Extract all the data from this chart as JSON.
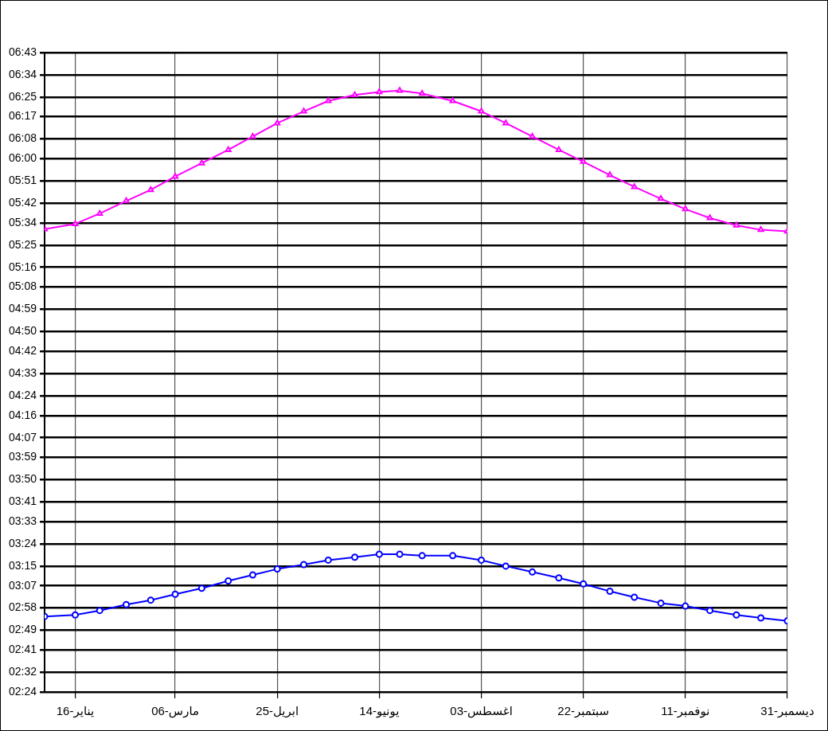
{
  "chart_data": {
    "type": "line",
    "xlim": [
      "--01-01",
      "--12-31"
    ],
    "xticks": [
      {
        "value": "--01-16",
        "label": "16-يناير"
      },
      {
        "value": "--03-06",
        "label": "06-مارس"
      },
      {
        "value": "--04-25",
        "label": "25-ابريل"
      },
      {
        "value": "--06-14",
        "label": "14-يونيو"
      },
      {
        "value": "--08-03",
        "label": "03-اغسطس"
      },
      {
        "value": "--09-22",
        "label": "22-سبتمبر"
      },
      {
        "value": "--11-11",
        "label": "11-نوفمبر"
      },
      {
        "value": "--12-31",
        "label": "31-ديسمبر"
      }
    ],
    "ylim": [
      2.4,
      6.7167
    ],
    "yticks": [
      {
        "value": 2.4,
        "label": "02:24"
      },
      {
        "value": 2.5333,
        "label": "02:32"
      },
      {
        "value": 2.6833,
        "label": "02:41"
      },
      {
        "value": 2.8167,
        "label": "02:49"
      },
      {
        "value": 2.9667,
        "label": "02:58"
      },
      {
        "value": 3.1167,
        "label": "03:07"
      },
      {
        "value": 3.25,
        "label": "03:15"
      },
      {
        "value": 3.4,
        "label": "03:24"
      },
      {
        "value": 3.55,
        "label": "03:33"
      },
      {
        "value": 3.6833,
        "label": "03:41"
      },
      {
        "value": 3.8333,
        "label": "03:50"
      },
      {
        "value": 3.9833,
        "label": "03:59"
      },
      {
        "value": 4.1167,
        "label": "04:07"
      },
      {
        "value": 4.2667,
        "label": "04:16"
      },
      {
        "value": 4.4,
        "label": "04:24"
      },
      {
        "value": 4.55,
        "label": "04:33"
      },
      {
        "value": 4.7,
        "label": "04:42"
      },
      {
        "value": 4.8333,
        "label": "04:50"
      },
      {
        "value": 4.9833,
        "label": "04:59"
      },
      {
        "value": 5.1333,
        "label": "05:08"
      },
      {
        "value": 5.2667,
        "label": "05:16"
      },
      {
        "value": 5.4167,
        "label": "05:25"
      },
      {
        "value": 5.5667,
        "label": "05:34"
      },
      {
        "value": 5.7,
        "label": "05:42"
      },
      {
        "value": 5.85,
        "label": "05:51"
      },
      {
        "value": 6,
        "label": "06:00"
      },
      {
        "value": 6.1333,
        "label": "06:08"
      },
      {
        "value": 6.2833,
        "label": "06:17"
      },
      {
        "value": 6.4167,
        "label": "06:25"
      },
      {
        "value": 6.5667,
        "label": "06:34"
      },
      {
        "value": 6.7167,
        "label": "06:43"
      }
    ],
    "grid": true,
    "legend": false,
    "series": [
      {
        "color": "#ff00ff",
        "marker": "triangle",
        "x": [
          "--01-01",
          "--01-16",
          "--01-28",
          "--02-10",
          "--02-22",
          "--03-06",
          "--03-19",
          "--04-01",
          "--04-13",
          "--04-25",
          "--05-08",
          "--05-20",
          "--06-02",
          "--06-14",
          "--06-24",
          "--07-05",
          "--07-20",
          "--08-03",
          "--08-15",
          "--08-28",
          "--09-10",
          "--09-22",
          "--10-05",
          "--10-17",
          "--10-30",
          "--11-11",
          "--11-23",
          "--12-06",
          "--12-18",
          "--12-31"
        ],
        "values": [
          5.525,
          5.56,
          5.63,
          5.715,
          5.79,
          5.88,
          5.97,
          6.06,
          6.15,
          6.24,
          6.32,
          6.39,
          6.43,
          6.45,
          6.46,
          6.44,
          6.39,
          6.32,
          6.24,
          6.15,
          6.06,
          5.98,
          5.89,
          5.81,
          5.73,
          5.66,
          5.6,
          5.55,
          5.52,
          5.51
        ]
      },
      {
        "color": "#0000ff",
        "marker": "circle",
        "x": [
          "--01-01",
          "--01-16",
          "--01-28",
          "--02-10",
          "--02-22",
          "--03-06",
          "--03-19",
          "--04-01",
          "--04-13",
          "--04-25",
          "--05-08",
          "--05-20",
          "--06-02",
          "--06-14",
          "--06-24",
          "--07-05",
          "--07-20",
          "--08-03",
          "--08-15",
          "--08-28",
          "--09-10",
          "--09-22",
          "--10-05",
          "--10-17",
          "--10-30",
          "--11-11",
          "--11-23",
          "--12-06",
          "--12-18",
          "--12-31"
        ],
        "values": [
          2.91,
          2.92,
          2.95,
          2.99,
          3.02,
          3.06,
          3.1,
          3.15,
          3.19,
          3.23,
          3.26,
          3.29,
          3.31,
          3.33,
          3.33,
          3.32,
          3.32,
          3.29,
          3.25,
          3.21,
          3.17,
          3.13,
          3.08,
          3.04,
          3.0,
          2.98,
          2.95,
          2.92,
          2.9,
          2.88
        ]
      }
    ]
  }
}
